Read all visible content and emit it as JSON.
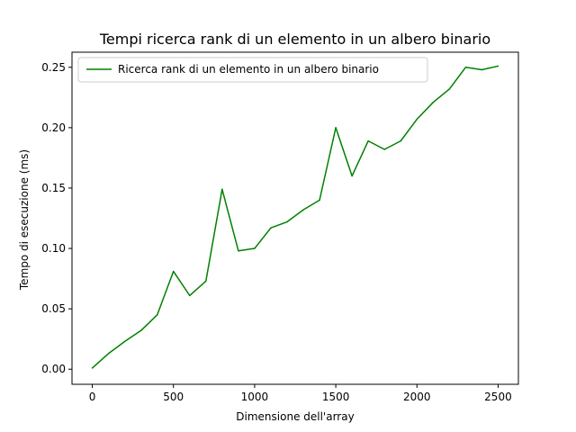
{
  "chart_data": {
    "type": "line",
    "title": "Tempi ricerca rank di un elemento in un albero binario",
    "xlabel": "Dimensione dell'array",
    "ylabel": "Tempo di esecuzione (ms)",
    "xlim": [
      -125,
      2625
    ],
    "ylim": [
      -0.0125,
      0.2625
    ],
    "xticks": [
      0,
      500,
      1000,
      1500,
      2000,
      2500
    ],
    "xtick_labels": [
      "0",
      "500",
      "1000",
      "1500",
      "2000",
      "2500"
    ],
    "yticks": [
      0.0,
      0.05,
      0.1,
      0.15,
      0.2,
      0.25
    ],
    "ytick_labels": [
      "0.00",
      "0.05",
      "0.10",
      "0.15",
      "0.20",
      "0.25"
    ],
    "grid": false,
    "legend_position": "top-left",
    "series": [
      {
        "name": "Ricerca rank di un elemento in un albero binario",
        "color": "#008000",
        "x": [
          0,
          100,
          200,
          300,
          400,
          500,
          600,
          700,
          800,
          900,
          1000,
          1100,
          1200,
          1300,
          1400,
          1500,
          1600,
          1700,
          1800,
          1900,
          2000,
          2100,
          2200,
          2300,
          2400,
          2500
        ],
        "y": [
          0.001,
          0.013,
          0.023,
          0.032,
          0.045,
          0.081,
          0.061,
          0.073,
          0.149,
          0.098,
          0.1,
          0.117,
          0.122,
          0.132,
          0.14,
          0.2,
          0.16,
          0.189,
          0.182,
          0.189,
          0.207,
          0.221,
          0.232,
          0.25,
          0.248,
          0.251
        ]
      }
    ]
  }
}
